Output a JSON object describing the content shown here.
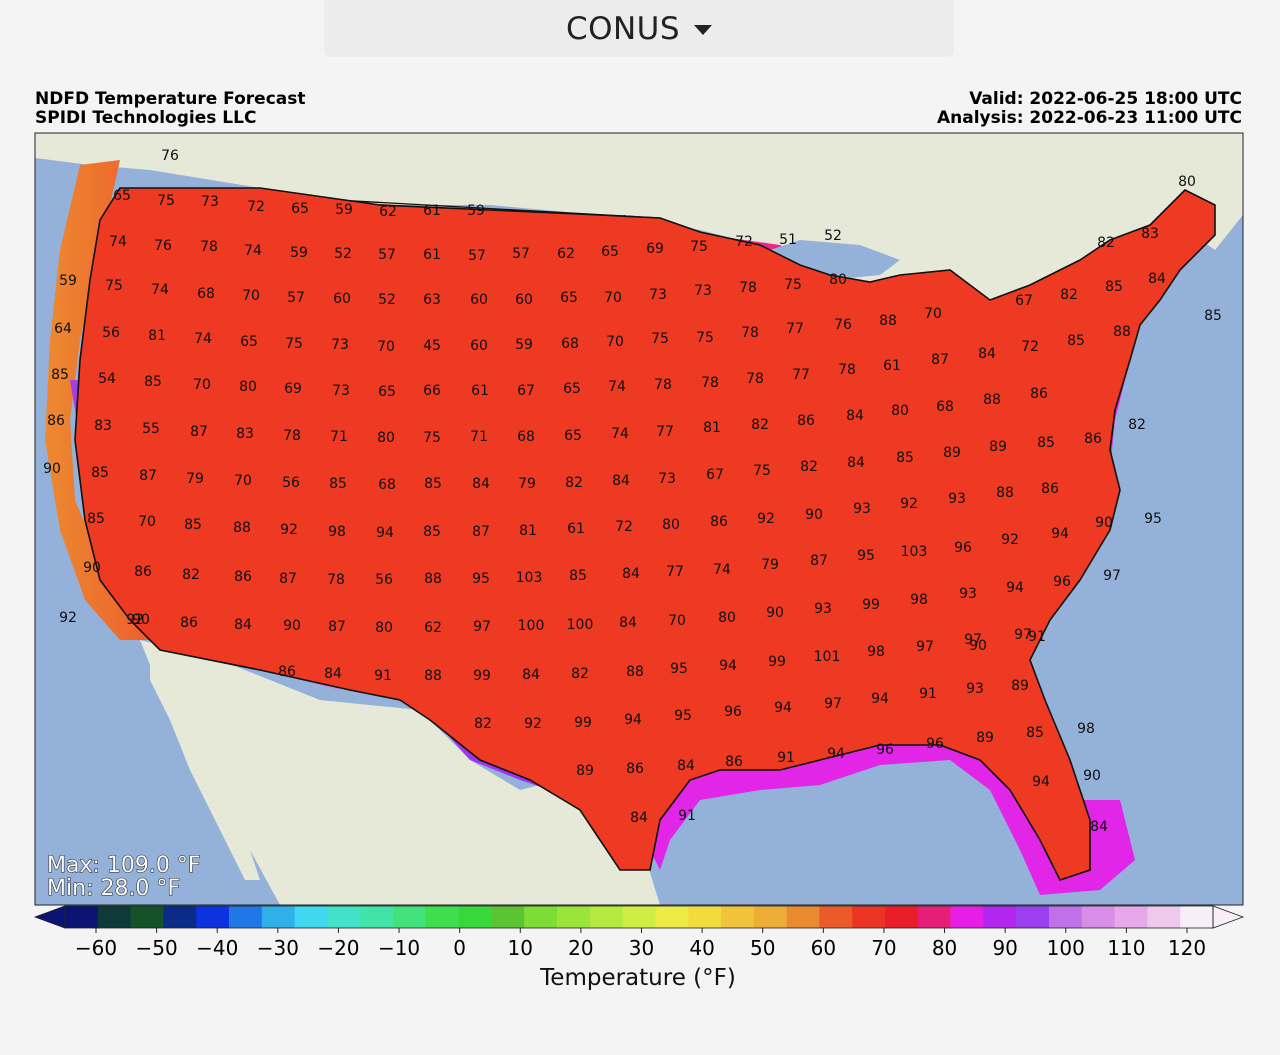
{
  "region_selector": {
    "selected": "CONUS"
  },
  "header": {
    "title": "NDFD Temperature Forecast",
    "source": "SPIDI Technologies LLC",
    "valid": "Valid: 2022-06-25 18:00 UTC",
    "analysis": "Analysis: 2022-06-23 11:00 UTC"
  },
  "stats": {
    "max": "Max: 109.0 °F",
    "min": "Min: 28.0 °F"
  },
  "colorbar": {
    "label": "Temperature (°F)",
    "ticks": [
      "−60",
      "−50",
      "−40",
      "−30",
      "−20",
      "−10",
      "0",
      "10",
      "20",
      "30",
      "40",
      "50",
      "60",
      "70",
      "80",
      "90",
      "100",
      "110",
      "120"
    ],
    "colors": [
      "#0b1473",
      "#0f3a3a",
      "#15522a",
      "#0a2b88",
      "#0d32e0",
      "#2177e6",
      "#2fb0ea",
      "#3fd8f0",
      "#42e2c8",
      "#3fe4a6",
      "#42e27c",
      "#3ddf4e",
      "#38d83a",
      "#5cc433",
      "#7edc37",
      "#9be43a",
      "#b4ea3e",
      "#cfee45",
      "#ecec45",
      "#f2dc3c",
      "#f0c33a",
      "#ecae36",
      "#e98a30",
      "#ec5a2c",
      "#ec3424",
      "#e81e28",
      "#e61e78",
      "#e61ee6",
      "#b226f0",
      "#9c3ff0",
      "#c070e8",
      "#d88ee6",
      "#e6a8e8",
      "#efc8ee",
      "#f8eef8"
    ]
  },
  "colors": {
    "ocean": "#93b1d9",
    "land": "#e6e8d8",
    "great_lakes": "#93b1d9"
  },
  "map_labels": [
    "76",
    "65",
    "75",
    "73",
    "72",
    "65",
    "59",
    "62",
    "61",
    "59",
    "74",
    "76",
    "78",
    "74",
    "59",
    "52",
    "57",
    "61",
    "57",
    "57",
    "62",
    "65",
    "69",
    "75",
    "72",
    "51",
    "52",
    "82",
    "83",
    "80",
    "59",
    "75",
    "74",
    "68",
    "70",
    "57",
    "60",
    "52",
    "63",
    "60",
    "60",
    "65",
    "70",
    "73",
    "73",
    "78",
    "75",
    "80",
    "88",
    "70",
    "67",
    "82",
    "85",
    "84",
    "85",
    "64",
    "56",
    "81",
    "74",
    "65",
    "75",
    "73",
    "70",
    "45",
    "60",
    "59",
    "68",
    "70",
    "75",
    "75",
    "78",
    "77",
    "76",
    "61",
    "87",
    "84",
    "72",
    "85",
    "88",
    "85",
    "54",
    "85",
    "70",
    "80",
    "69",
    "73",
    "65",
    "66",
    "61",
    "67",
    "65",
    "74",
    "78",
    "78",
    "78",
    "77",
    "78",
    "68",
    "88",
    "86",
    "86",
    "83",
    "55",
    "87",
    "83",
    "78",
    "71",
    "80",
    "75",
    "71",
    "68",
    "65",
    "74",
    "77",
    "81",
    "82",
    "86",
    "84",
    "80",
    "82",
    "90",
    "85",
    "87",
    "79",
    "70",
    "56",
    "85",
    "68",
    "85",
    "84",
    "79",
    "82",
    "84",
    "73",
    "67",
    "75",
    "82",
    "84",
    "85",
    "89",
    "89",
    "85",
    "86",
    "86",
    "85",
    "70",
    "85",
    "88",
    "92",
    "98",
    "94",
    "85",
    "87",
    "81",
    "61",
    "72",
    "80",
    "86",
    "92",
    "90",
    "93",
    "92",
    "93",
    "88",
    "90",
    "90",
    "86",
    "82",
    "86",
    "87",
    "78",
    "56",
    "88",
    "95",
    "103",
    "85",
    "84",
    "77",
    "74",
    "79",
    "87",
    "95",
    "103",
    "96",
    "92",
    "94",
    "95",
    "92",
    "90",
    "86",
    "84",
    "90",
    "87",
    "80",
    "62",
    "97",
    "100",
    "100",
    "84",
    "70",
    "80",
    "90",
    "93",
    "99",
    "98",
    "93",
    "94",
    "96",
    "97",
    "92",
    "86",
    "84",
    "91",
    "88",
    "99",
    "84",
    "82",
    "88",
    "95",
    "94",
    "99",
    "101",
    "98",
    "97",
    "97",
    "97",
    "98",
    "91",
    "90",
    "89",
    "93",
    "91",
    "94",
    "97",
    "94",
    "96",
    "95",
    "94",
    "99",
    "92",
    "82",
    "89",
    "86",
    "84",
    "86",
    "91",
    "94",
    "96",
    "96",
    "89",
    "85",
    "90",
    "94",
    "84",
    "91",
    "84"
  ]
}
